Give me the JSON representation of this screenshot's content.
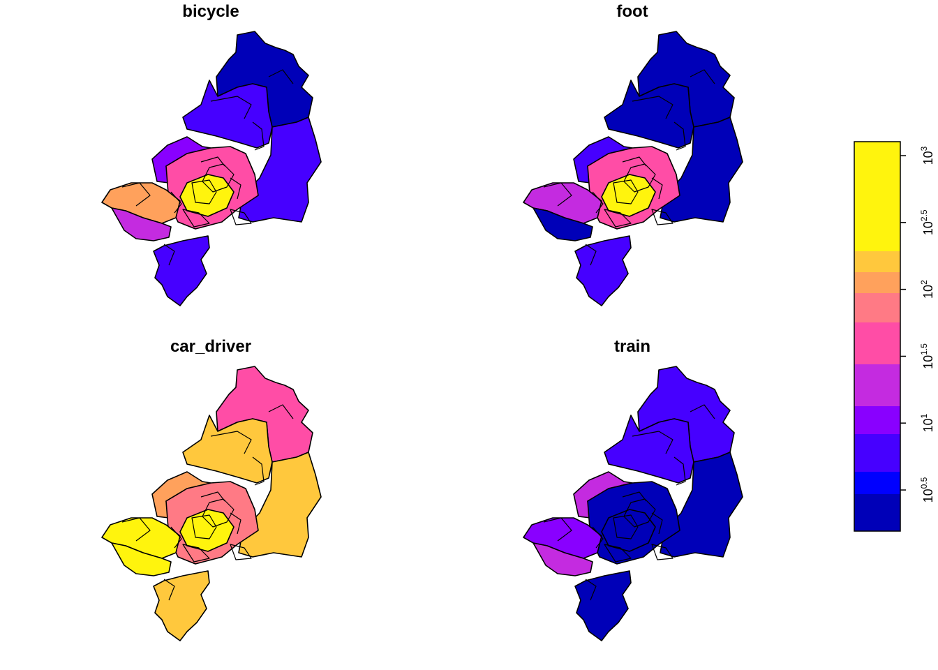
{
  "panels": [
    {
      "title": "bicycle",
      "fills": {
        "north": "#0000B8",
        "northwest": "#4600FF",
        "center": "#FF4DA6",
        "east": "#4600FF",
        "west": "#FFA15C",
        "southwest": "#C42BE0",
        "south": "#4600FF",
        "inner": "#8900FF",
        "core": "#FFF40D"
      }
    },
    {
      "title": "foot",
      "fills": {
        "north": "#0000B8",
        "northwest": "#0000B8",
        "center": "#FF4DA6",
        "east": "#0000B8",
        "west": "#C42BE0",
        "southwest": "#0000B8",
        "south": "#4600FF",
        "inner": "#4600FF",
        "core": "#FFF40D"
      }
    },
    {
      "title": "car_driver",
      "fills": {
        "north": "#FF4DA6",
        "northwest": "#FFC83D",
        "center": "#FF7A85",
        "east": "#FFC83D",
        "west": "#FFF40D",
        "southwest": "#FFF40D",
        "south": "#FFC83D",
        "inner": "#FFA15C",
        "core": "#FFF40D"
      }
    },
    {
      "title": "train",
      "fills": {
        "north": "#4600FF",
        "northwest": "#4600FF",
        "center": "#0000B8",
        "east": "#0000B8",
        "west": "#8900FF",
        "southwest": "#C42BE0",
        "south": "#0000B8",
        "inner": "#C42BE0",
        "core": "#0000B8"
      }
    }
  ],
  "legend": {
    "scale": "log10",
    "classes": [
      {
        "color": "#FFF40D"
      },
      {
        "color": "#FFC83D"
      },
      {
        "color": "#FFA15C"
      },
      {
        "color": "#FF7A85"
      },
      {
        "color": "#FF4DA6"
      },
      {
        "color": "#C42BE0"
      },
      {
        "color": "#8900FF"
      },
      {
        "color": "#4600FF"
      },
      {
        "color": "#0000FF"
      },
      {
        "color": "#0000B8"
      }
    ],
    "ticks": [
      {
        "base": "10",
        "exp": "3",
        "value": 1000
      },
      {
        "base": "10",
        "exp": "2.5",
        "value": 316.2
      },
      {
        "base": "10",
        "exp": "2",
        "value": 100
      },
      {
        "base": "10",
        "exp": "1.5",
        "value": 31.6
      },
      {
        "base": "10",
        "exp": "1",
        "value": 10
      },
      {
        "base": "10",
        "exp": "0.5",
        "value": 3.16
      }
    ]
  }
}
